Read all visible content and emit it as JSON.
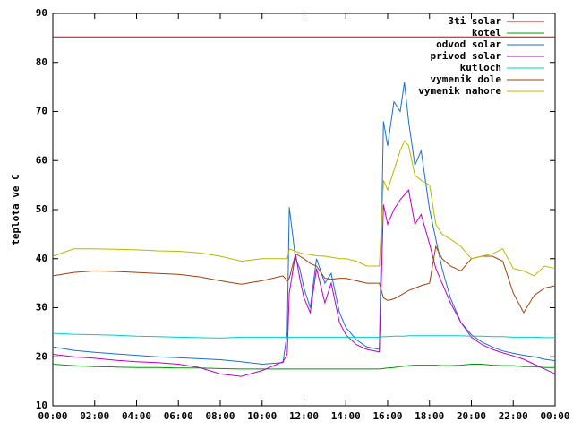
{
  "chart_data": {
    "type": "line",
    "ylabel": "teplota ve C",
    "x": [
      0,
      1,
      2,
      3,
      4,
      5,
      6,
      7,
      8,
      9,
      10,
      11,
      11.2,
      11.3,
      11.6,
      11.8,
      12,
      12.3,
      12.6,
      13,
      13.3,
      13.7,
      14,
      14.5,
      15,
      15.6,
      15.8,
      16,
      16.3,
      16.6,
      16.8,
      17,
      17.3,
      17.6,
      18,
      18.3,
      18.6,
      19,
      19.5,
      20,
      20.5,
      21,
      21.5,
      22,
      22.5,
      23,
      23.5,
      24
    ],
    "xlim": [
      0,
      24
    ],
    "xticks": [
      {
        "value": 0,
        "label": "00:00"
      },
      {
        "value": 2,
        "label": "02:00"
      },
      {
        "value": 4,
        "label": "04:00"
      },
      {
        "value": 6,
        "label": "06:00"
      },
      {
        "value": 8,
        "label": "08:00"
      },
      {
        "value": 10,
        "label": "10:00"
      },
      {
        "value": 12,
        "label": "12:00"
      },
      {
        "value": 14,
        "label": "14:00"
      },
      {
        "value": 16,
        "label": "16:00"
      },
      {
        "value": 18,
        "label": "18:00"
      },
      {
        "value": 20,
        "label": "20:00"
      },
      {
        "value": 22,
        "label": "22:00"
      },
      {
        "value": 24,
        "label": "00:00"
      }
    ],
    "ylim": [
      10,
      90
    ],
    "yticks": [
      10,
      20,
      30,
      40,
      50,
      60,
      70,
      80,
      90
    ],
    "grid": false,
    "legend": "top-right",
    "series": [
      {
        "name": "3ti solar",
        "color": "#cc0000",
        "values": [
          85.2,
          85.2,
          85.2,
          85.2,
          85.2,
          85.2,
          85.2,
          85.2,
          85.2,
          85.2,
          85.2,
          85.2,
          85.2,
          85.2,
          85.2,
          85.2,
          85.2,
          85.2,
          85.2,
          85.2,
          85.2,
          85.2,
          85.2,
          85.2,
          85.2,
          85.2,
          85.2,
          85.2,
          85.2,
          85.2,
          85.2,
          85.2,
          85.2,
          85.2,
          85.2,
          85.2,
          85.2,
          85.2,
          85.2,
          85.2,
          85.2,
          85.2,
          85.2,
          85.2,
          85.2,
          85.2,
          85.2,
          85.2
        ]
      },
      {
        "name": "kotel",
        "color": "#009900",
        "values": [
          18.5,
          18.2,
          18,
          17.9,
          17.8,
          17.8,
          17.7,
          17.7,
          17.6,
          17.5,
          17.5,
          17.5,
          17.5,
          17.5,
          17.5,
          17.5,
          17.5,
          17.5,
          17.5,
          17.5,
          17.5,
          17.5,
          17.5,
          17.5,
          17.5,
          17.5,
          17.6,
          17.7,
          17.8,
          18,
          18.1,
          18.2,
          18.3,
          18.3,
          18.3,
          18.3,
          18.2,
          18.2,
          18.3,
          18.5,
          18.5,
          18.3,
          18.2,
          18.2,
          18,
          18,
          17.8,
          17.8
        ]
      },
      {
        "name": "odvod solar",
        "color": "#1a6fd1",
        "values": [
          22,
          21.3,
          20.9,
          20.6,
          20.3,
          20,
          19.8,
          19.6,
          19.4,
          19,
          18.5,
          18.8,
          25,
          50.5,
          40,
          38,
          34,
          30,
          40,
          35,
          37,
          29,
          26,
          23.5,
          22,
          21.5,
          68,
          63,
          72,
          70,
          76,
          68,
          59,
          62,
          50,
          44,
          38,
          32,
          27,
          24.5,
          23,
          22,
          21.2,
          20.7,
          20.3,
          20,
          19.5,
          19.2
        ]
      },
      {
        "name": "privod solar",
        "color": "#bb00cc",
        "values": [
          20.5,
          20,
          19.7,
          19.3,
          19,
          18.8,
          18.5,
          17.8,
          16.5,
          16,
          17.2,
          19,
          20.5,
          33,
          41,
          36,
          32,
          29,
          38,
          31,
          35,
          27,
          24.5,
          22.5,
          21.5,
          21,
          51,
          47,
          50,
          52,
          53,
          54,
          47,
          49,
          43,
          38,
          35,
          31,
          27,
          24,
          22.5,
          21.5,
          20.8,
          20.2,
          19.5,
          18.5,
          17.5,
          16.5
        ]
      },
      {
        "name": "kutloch",
        "color": "#00cccc",
        "values": [
          24.8,
          24.6,
          24.5,
          24.4,
          24.2,
          24.1,
          24,
          23.9,
          23.8,
          24,
          24,
          24,
          24,
          24,
          24,
          24,
          24,
          24,
          24,
          24,
          24,
          24,
          24,
          24,
          24,
          24,
          24.1,
          24.1,
          24.2,
          24.2,
          24.2,
          24.3,
          24.3,
          24.3,
          24.3,
          24.3,
          24.3,
          24.3,
          24.3,
          24.2,
          24.2,
          24.1,
          24.1,
          24,
          24,
          24,
          23.9,
          23.9
        ]
      },
      {
        "name": "vymenik dole",
        "color": "#a0400a",
        "values": [
          36.5,
          37.2,
          37.5,
          37.4,
          37.2,
          37,
          36.8,
          36.3,
          35.5,
          34.8,
          35.5,
          36.5,
          35.5,
          36,
          41,
          40.5,
          40,
          39,
          38.5,
          36,
          35.8,
          36,
          36,
          35.5,
          35,
          35,
          32,
          31.5,
          31.8,
          32.5,
          33,
          33.5,
          34,
          34.5,
          35,
          42.5,
          40,
          38.5,
          37.5,
          40,
          40.5,
          40.5,
          39.5,
          33,
          29,
          32.5,
          34,
          34.5
        ]
      },
      {
        "name": "vymenik nahore",
        "color": "#b8b800",
        "values": [
          40.5,
          42,
          42,
          41.9,
          41.8,
          41.6,
          41.5,
          41.2,
          40.5,
          39.5,
          40,
          40,
          40,
          42,
          41.5,
          41.2,
          41,
          40.8,
          40.6,
          40.5,
          40.3,
          40,
          40,
          39.5,
          38.5,
          38.5,
          56,
          54,
          58,
          62,
          64,
          63,
          57,
          56,
          55,
          47,
          45,
          44,
          42.5,
          40,
          40.5,
          41,
          42,
          38,
          37.5,
          36.5,
          38.5,
          38
        ]
      }
    ]
  }
}
